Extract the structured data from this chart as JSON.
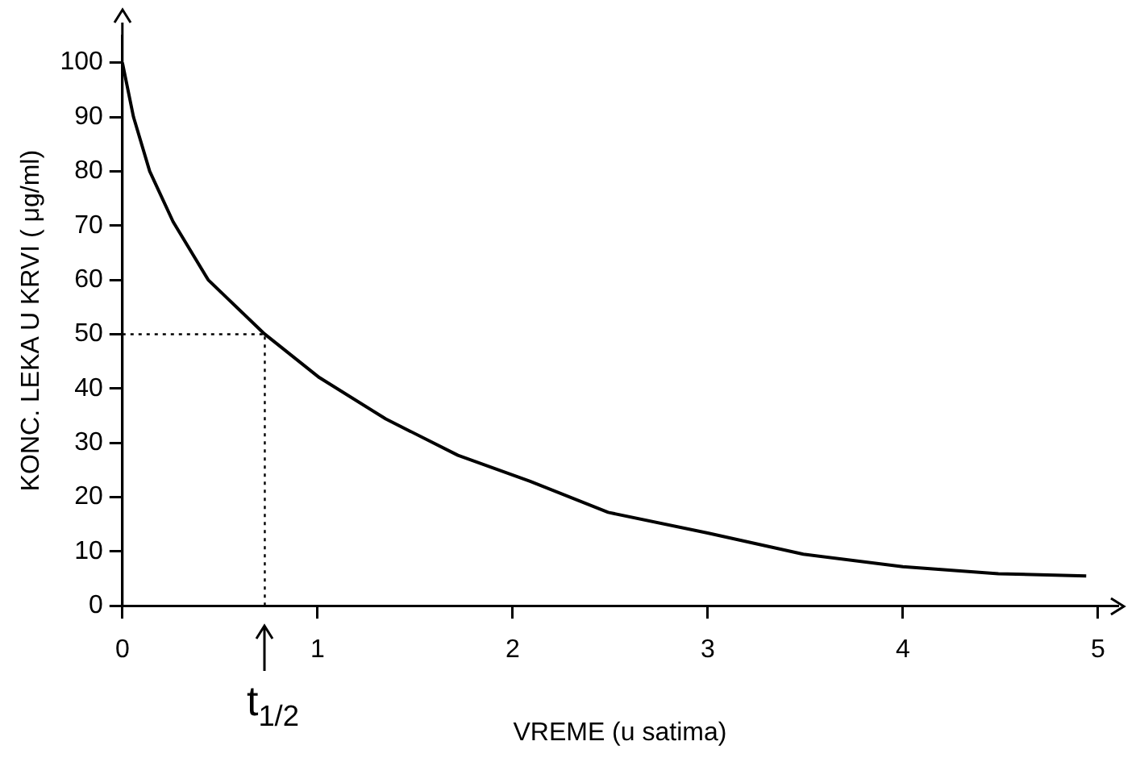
{
  "chart_data": {
    "type": "line",
    "xlabel": "VREME (u satima)",
    "ylabel": "KONC. LEKA U KRVI ( μg/ml)",
    "x": [
      0.0,
      0.057,
      0.14,
      0.26,
      0.44,
      0.73,
      1.01,
      1.35,
      1.72,
      2.09,
      2.49,
      3.0,
      3.49,
      4.0,
      4.49,
      4.94
    ],
    "series": [
      {
        "color": "#000000",
        "values": [
          100,
          90,
          80,
          70.7,
          60,
          50,
          42,
          34.4,
          27.7,
          22.9,
          17.2,
          13.4,
          9.5,
          7.2,
          5.9,
          5.5
        ]
      }
    ],
    "xlim": [
      0,
      5.1
    ],
    "ylim": [
      0,
      105
    ],
    "xticks": [
      0,
      1,
      2,
      3,
      4,
      5
    ],
    "yticks": [
      0,
      10,
      20,
      30,
      40,
      50,
      60,
      70,
      80,
      90,
      100
    ],
    "grid": false,
    "legend": false,
    "marker": "none",
    "line_style": "solid",
    "ref_lines": [
      {
        "axis": "x",
        "value": 0.73,
        "label": "t$_{1/2}$",
        "line_style": "dotted"
      },
      {
        "axis": "y",
        "value": 50,
        "label": null,
        "line_style": "dotted"
      }
    ]
  }
}
